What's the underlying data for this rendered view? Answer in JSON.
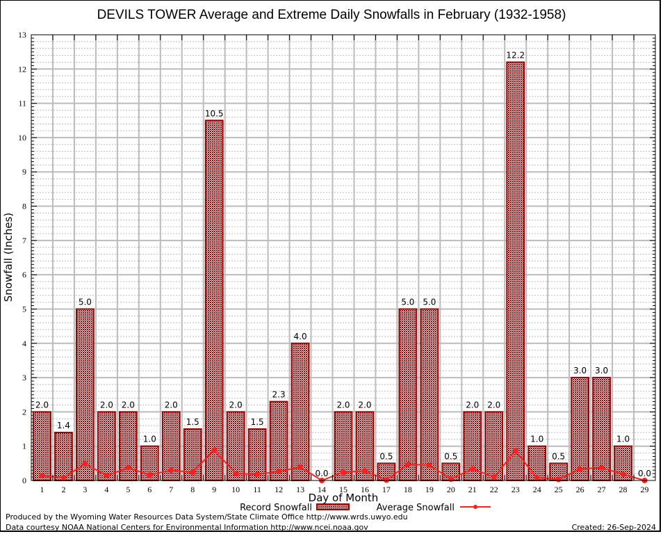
{
  "chart_data": {
    "type": "bar",
    "title": "DEVILS TOWER Average and Extreme Daily Snowfalls in February (1932-1958)",
    "xlabel": "Day of Month",
    "ylabel": "Snowfall (Inches)",
    "ylim": [
      0,
      13
    ],
    "yticks": [
      "0",
      "1",
      "2",
      "3",
      "4",
      "5",
      "6",
      "7",
      "8",
      "9",
      "10",
      "11",
      "12",
      "13"
    ],
    "grid": true,
    "legend_position": "bottom-center",
    "categories": [
      "1",
      "2",
      "3",
      "4",
      "5",
      "6",
      "7",
      "8",
      "9",
      "10",
      "11",
      "12",
      "13",
      "14",
      "15",
      "16",
      "17",
      "18",
      "19",
      "20",
      "21",
      "22",
      "23",
      "24",
      "25",
      "26",
      "27",
      "28",
      "29"
    ],
    "series": [
      {
        "name": "Record Snowfall",
        "type": "bar",
        "color": "#990000",
        "values": [
          2.0,
          1.4,
          5.0,
          2.0,
          2.0,
          1.0,
          2.0,
          1.5,
          10.5,
          2.0,
          1.5,
          2.3,
          4.0,
          0.0,
          2.0,
          2.0,
          0.5,
          5.0,
          5.0,
          0.5,
          2.0,
          2.0,
          12.2,
          1.0,
          0.5,
          3.0,
          3.0,
          1.0,
          0.0
        ],
        "labels": [
          "2.0",
          "1.4",
          "5.0",
          "2.0",
          "2.0",
          "1.0",
          "2.0",
          "1.5",
          "10.5",
          "2.0",
          "1.5",
          "2.3",
          "4.0",
          "0.0",
          "2.0",
          "2.0",
          "0.5",
          "5.0",
          "5.0",
          "0.5",
          "2.0",
          "2.0",
          "12.2",
          "1.0",
          "0.5",
          "3.0",
          "3.0",
          "1.0",
          "0.0"
        ]
      },
      {
        "name": "Average Snowfall",
        "type": "line",
        "color": "#ff2020",
        "values": [
          0.14,
          0.08,
          0.49,
          0.14,
          0.37,
          0.16,
          0.3,
          0.24,
          0.89,
          0.2,
          0.18,
          0.26,
          0.39,
          0.0,
          0.24,
          0.28,
          0.01,
          0.47,
          0.45,
          0.04,
          0.34,
          0.1,
          0.86,
          0.08,
          0.03,
          0.34,
          0.37,
          0.18,
          0.0
        ]
      }
    ]
  },
  "footer": {
    "line1": "Produced by the Wyoming Water Resources Data System/State Climate Office http://www.wrds.uwyo.edu",
    "line2": "Data courtesy NOAA National Centers for Environmental Information http://www.ncei.noaa.gov",
    "created": "Created: 26-Sep-2024"
  }
}
